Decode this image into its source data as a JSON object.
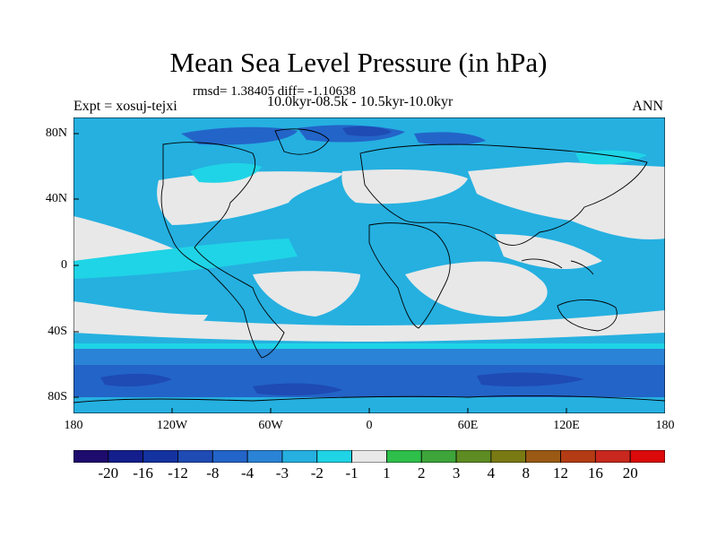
{
  "title": "Mean Sea Level Pressure (in hPa)",
  "stats": "rmsd= 1.38405 diff= -1.10638",
  "subtitle": "10.0kyr-08.5k - 10.5kyr-10.0kyr",
  "expt": "Expt = xosuj-tejxi",
  "season": "ANN",
  "yticks": [
    "80N",
    "40N",
    "0",
    "40S",
    "80S"
  ],
  "xticks": [
    "180",
    "120W",
    "60W",
    "0",
    "60E",
    "120E",
    "180"
  ],
  "colorbar": {
    "labels": [
      "-20",
      "-16",
      "-12",
      "-8",
      "-4",
      "-3",
      "-2",
      "-1",
      "1",
      "2",
      "3",
      "4",
      "8",
      "12",
      "16",
      "20"
    ],
    "colors": [
      "#1e0b6e",
      "#141e8c",
      "#1432a0",
      "#1e4bb4",
      "#2364c8",
      "#2a83d6",
      "#25b0e0",
      "#1fd4e6",
      "#e8e8e8",
      "#2ec04a",
      "#3ea53a",
      "#5e8c22",
      "#7a7a14",
      "#9a5a14",
      "#b43c14",
      "#c8281e",
      "#dc0a0a"
    ]
  },
  "chart_data": {
    "type": "heatmap",
    "title": "Mean Sea Level Pressure (in hPa)",
    "subtitle": "10.0kyr-08.5k - 10.5kyr-10.0kyr",
    "variable_units": "hPa",
    "x_range": [
      -180,
      180
    ],
    "y_range": [
      -90,
      90
    ],
    "levels": [
      -20,
      -16,
      -12,
      -8,
      -4,
      -3,
      -2,
      -1,
      1,
      2,
      3,
      4,
      8,
      12,
      16,
      20
    ],
    "stats": {
      "rmsd": 1.38405,
      "diff": -1.10638
    },
    "season": "ANN",
    "experiment": "xosuj-tejxi"
  }
}
